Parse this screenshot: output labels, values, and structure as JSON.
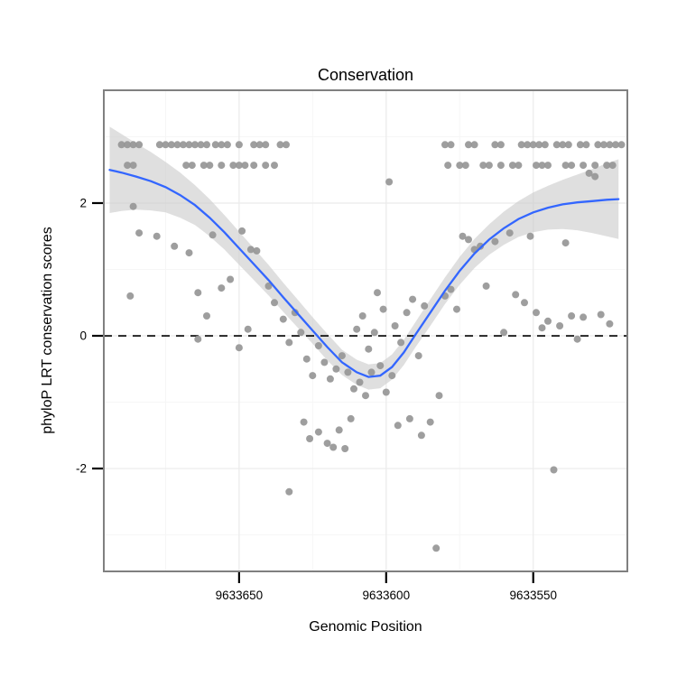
{
  "chart_data": {
    "type": "scatter",
    "title": "Conservation",
    "xlabel": "Genomic Position",
    "ylabel": "phyloP LRT conservation scores",
    "x_reversed": true,
    "xlim": [
      9633696,
      9633518
    ],
    "ylim": [
      -3.55,
      3.7
    ],
    "x_ticks": [
      9633650,
      9633600,
      9633550
    ],
    "y_ticks": [
      2,
      0,
      -2
    ],
    "x_minor_ticks": [
      9633675,
      9633625,
      9633575
    ],
    "y_minor_ticks": [
      3,
      1,
      -1,
      -3
    ],
    "zero_line_y": 0,
    "grid": "major",
    "legend": "none",
    "colors": {
      "point": "#969696",
      "smooth": "#3366FF",
      "ribbon": "#cccccc",
      "grid_major": "#ebebeb",
      "grid_minor": "#f6f6f6",
      "border": "#808080",
      "zero_line": "#000000",
      "text": "#000000"
    },
    "points": [
      [
        9633690,
        2.88
      ],
      [
        9633688,
        2.88
      ],
      [
        9633686,
        2.88
      ],
      [
        9633684,
        2.88
      ],
      [
        9633677,
        2.88
      ],
      [
        9633675,
        2.88
      ],
      [
        9633673,
        2.88
      ],
      [
        9633671,
        2.88
      ],
      [
        9633669,
        2.88
      ],
      [
        9633667,
        2.88
      ],
      [
        9633665,
        2.88
      ],
      [
        9633663,
        2.88
      ],
      [
        9633661,
        2.88
      ],
      [
        9633658,
        2.88
      ],
      [
        9633656,
        2.88
      ],
      [
        9633654,
        2.88
      ],
      [
        9633650,
        2.88
      ],
      [
        9633645,
        2.88
      ],
      [
        9633643,
        2.88
      ],
      [
        9633641,
        2.88
      ],
      [
        9633636,
        2.88
      ],
      [
        9633634,
        2.88
      ],
      [
        9633580,
        2.88
      ],
      [
        9633578,
        2.88
      ],
      [
        9633572,
        2.88
      ],
      [
        9633570,
        2.88
      ],
      [
        9633563,
        2.88
      ],
      [
        9633561,
        2.88
      ],
      [
        9633554,
        2.88
      ],
      [
        9633552,
        2.88
      ],
      [
        9633550,
        2.88
      ],
      [
        9633548,
        2.88
      ],
      [
        9633546,
        2.88
      ],
      [
        9633542,
        2.88
      ],
      [
        9633540,
        2.88
      ],
      [
        9633538,
        2.88
      ],
      [
        9633534,
        2.88
      ],
      [
        9633532,
        2.88
      ],
      [
        9633528,
        2.88
      ],
      [
        9633526,
        2.88
      ],
      [
        9633524,
        2.88
      ],
      [
        9633522,
        2.88
      ],
      [
        9633520,
        2.88
      ],
      [
        9633688,
        2.57
      ],
      [
        9633686,
        2.57
      ],
      [
        9633668,
        2.57
      ],
      [
        9633666,
        2.57
      ],
      [
        9633662,
        2.57
      ],
      [
        9633660,
        2.57
      ],
      [
        9633656,
        2.57
      ],
      [
        9633652,
        2.57
      ],
      [
        9633650,
        2.57
      ],
      [
        9633648,
        2.57
      ],
      [
        9633645,
        2.57
      ],
      [
        9633641,
        2.57
      ],
      [
        9633638,
        2.57
      ],
      [
        9633579,
        2.57
      ],
      [
        9633575,
        2.57
      ],
      [
        9633573,
        2.57
      ],
      [
        9633567,
        2.57
      ],
      [
        9633565,
        2.57
      ],
      [
        9633561,
        2.57
      ],
      [
        9633557,
        2.57
      ],
      [
        9633555,
        2.57
      ],
      [
        9633549,
        2.57
      ],
      [
        9633547,
        2.57
      ],
      [
        9633545,
        2.57
      ],
      [
        9633539,
        2.57
      ],
      [
        9633537,
        2.57
      ],
      [
        9633533,
        2.57
      ],
      [
        9633529,
        2.57
      ],
      [
        9633525,
        2.57
      ],
      [
        9633523,
        2.57
      ],
      [
        9633686,
        1.95
      ],
      [
        9633684,
        1.55
      ],
      [
        9633678,
        1.5
      ],
      [
        9633672,
        1.35
      ],
      [
        9633667,
        1.25
      ],
      [
        9633687,
        0.6
      ],
      [
        9633664,
        0.65
      ],
      [
        9633656,
        0.72
      ],
      [
        9633664,
        -0.05
      ],
      [
        9633650,
        -0.18
      ],
      [
        9633659,
        1.52
      ],
      [
        9633649,
        1.58
      ],
      [
        9633646,
        1.3
      ],
      [
        9633644,
        1.28
      ],
      [
        9633661,
        0.3
      ],
      [
        9633653,
        0.85
      ],
      [
        9633647,
        0.1
      ],
      [
        9633640,
        0.75
      ],
      [
        9633638,
        0.5
      ],
      [
        9633635,
        0.25
      ],
      [
        9633633,
        -0.1
      ],
      [
        9633631,
        0.35
      ],
      [
        9633629,
        0.05
      ],
      [
        9633627,
        -0.35
      ],
      [
        9633625,
        -0.6
      ],
      [
        9633623,
        -0.15
      ],
      [
        9633621,
        -0.4
      ],
      [
        9633633,
        -2.35
      ],
      [
        9633628,
        -1.3
      ],
      [
        9633626,
        -1.55
      ],
      [
        9633623,
        -1.45
      ],
      [
        9633620,
        -1.62
      ],
      [
        9633618,
        -1.68
      ],
      [
        9633616,
        -1.42
      ],
      [
        9633614,
        -1.7
      ],
      [
        9633612,
        -1.25
      ],
      [
        9633619,
        -0.65
      ],
      [
        9633617,
        -0.5
      ],
      [
        9633615,
        -0.3
      ],
      [
        9633613,
        -0.55
      ],
      [
        9633611,
        -0.8
      ],
      [
        9633609,
        -0.7
      ],
      [
        9633607,
        -0.9
      ],
      [
        9633605,
        -0.55
      ],
      [
        9633610,
        0.1
      ],
      [
        9633608,
        0.3
      ],
      [
        9633606,
        -0.2
      ],
      [
        9633604,
        0.05
      ],
      [
        9633602,
        -0.45
      ],
      [
        9633600,
        -0.85
      ],
      [
        9633598,
        -0.6
      ],
      [
        9633599,
        2.32
      ],
      [
        9633603,
        0.65
      ],
      [
        9633601,
        0.4
      ],
      [
        9633597,
        0.15
      ],
      [
        9633595,
        -0.1
      ],
      [
        9633593,
        0.35
      ],
      [
        9633591,
        0.55
      ],
      [
        9633589,
        -0.3
      ],
      [
        9633587,
        0.45
      ],
      [
        9633596,
        -1.35
      ],
      [
        9633592,
        -1.25
      ],
      [
        9633588,
        -1.5
      ],
      [
        9633585,
        -1.3
      ],
      [
        9633583,
        -3.2
      ],
      [
        9633582,
        -0.9
      ],
      [
        9633580,
        0.6
      ],
      [
        9633578,
        0.7
      ],
      [
        9633576,
        0.4
      ],
      [
        9633574,
        1.5
      ],
      [
        9633572,
        1.45
      ],
      [
        9633570,
        1.3
      ],
      [
        9633568,
        1.35
      ],
      [
        9633566,
        0.75
      ],
      [
        9633563,
        1.42
      ],
      [
        9633560,
        0.05
      ],
      [
        9633558,
        1.55
      ],
      [
        9633556,
        0.62
      ],
      [
        9633553,
        0.5
      ],
      [
        9633551,
        1.5
      ],
      [
        9633549,
        0.35
      ],
      [
        9633547,
        0.12
      ],
      [
        9633545,
        0.22
      ],
      [
        9633543,
        -2.02
      ],
      [
        9633541,
        0.15
      ],
      [
        9633539,
        1.4
      ],
      [
        9633537,
        0.3
      ],
      [
        9633535,
        -0.05
      ],
      [
        9633533,
        0.28
      ],
      [
        9633531,
        2.45
      ],
      [
        9633529,
        2.4
      ],
      [
        9633527,
        0.32
      ],
      [
        9633524,
        0.18
      ]
    ],
    "smooth": {
      "x": [
        9633694,
        9633690,
        9633685,
        9633680,
        9633675,
        9633670,
        9633665,
        9633660,
        9633655,
        9633650,
        9633645,
        9633640,
        9633635,
        9633630,
        9633625,
        9633620,
        9633615,
        9633610,
        9633606,
        9633602,
        9633598,
        9633594,
        9633590,
        9633585,
        9633580,
        9633575,
        9633570,
        9633565,
        9633560,
        9633555,
        9633550,
        9633545,
        9633540,
        9633535,
        9633530,
        9633525,
        9633521
      ],
      "y": [
        2.5,
        2.46,
        2.4,
        2.33,
        2.24,
        2.12,
        1.97,
        1.78,
        1.56,
        1.32,
        1.08,
        0.84,
        0.58,
        0.33,
        0.08,
        -0.17,
        -0.4,
        -0.55,
        -0.62,
        -0.6,
        -0.47,
        -0.25,
        0.02,
        0.35,
        0.68,
        0.98,
        1.24,
        1.45,
        1.62,
        1.76,
        1.86,
        1.93,
        1.98,
        2.01,
        2.03,
        2.05,
        2.06
      ],
      "se": [
        0.65,
        0.58,
        0.5,
        0.44,
        0.38,
        0.34,
        0.3,
        0.28,
        0.26,
        0.25,
        0.24,
        0.23,
        0.22,
        0.21,
        0.2,
        0.2,
        0.19,
        0.19,
        0.19,
        0.19,
        0.19,
        0.19,
        0.19,
        0.2,
        0.2,
        0.21,
        0.22,
        0.23,
        0.25,
        0.27,
        0.3,
        0.33,
        0.37,
        0.42,
        0.48,
        0.55,
        0.6
      ]
    }
  }
}
